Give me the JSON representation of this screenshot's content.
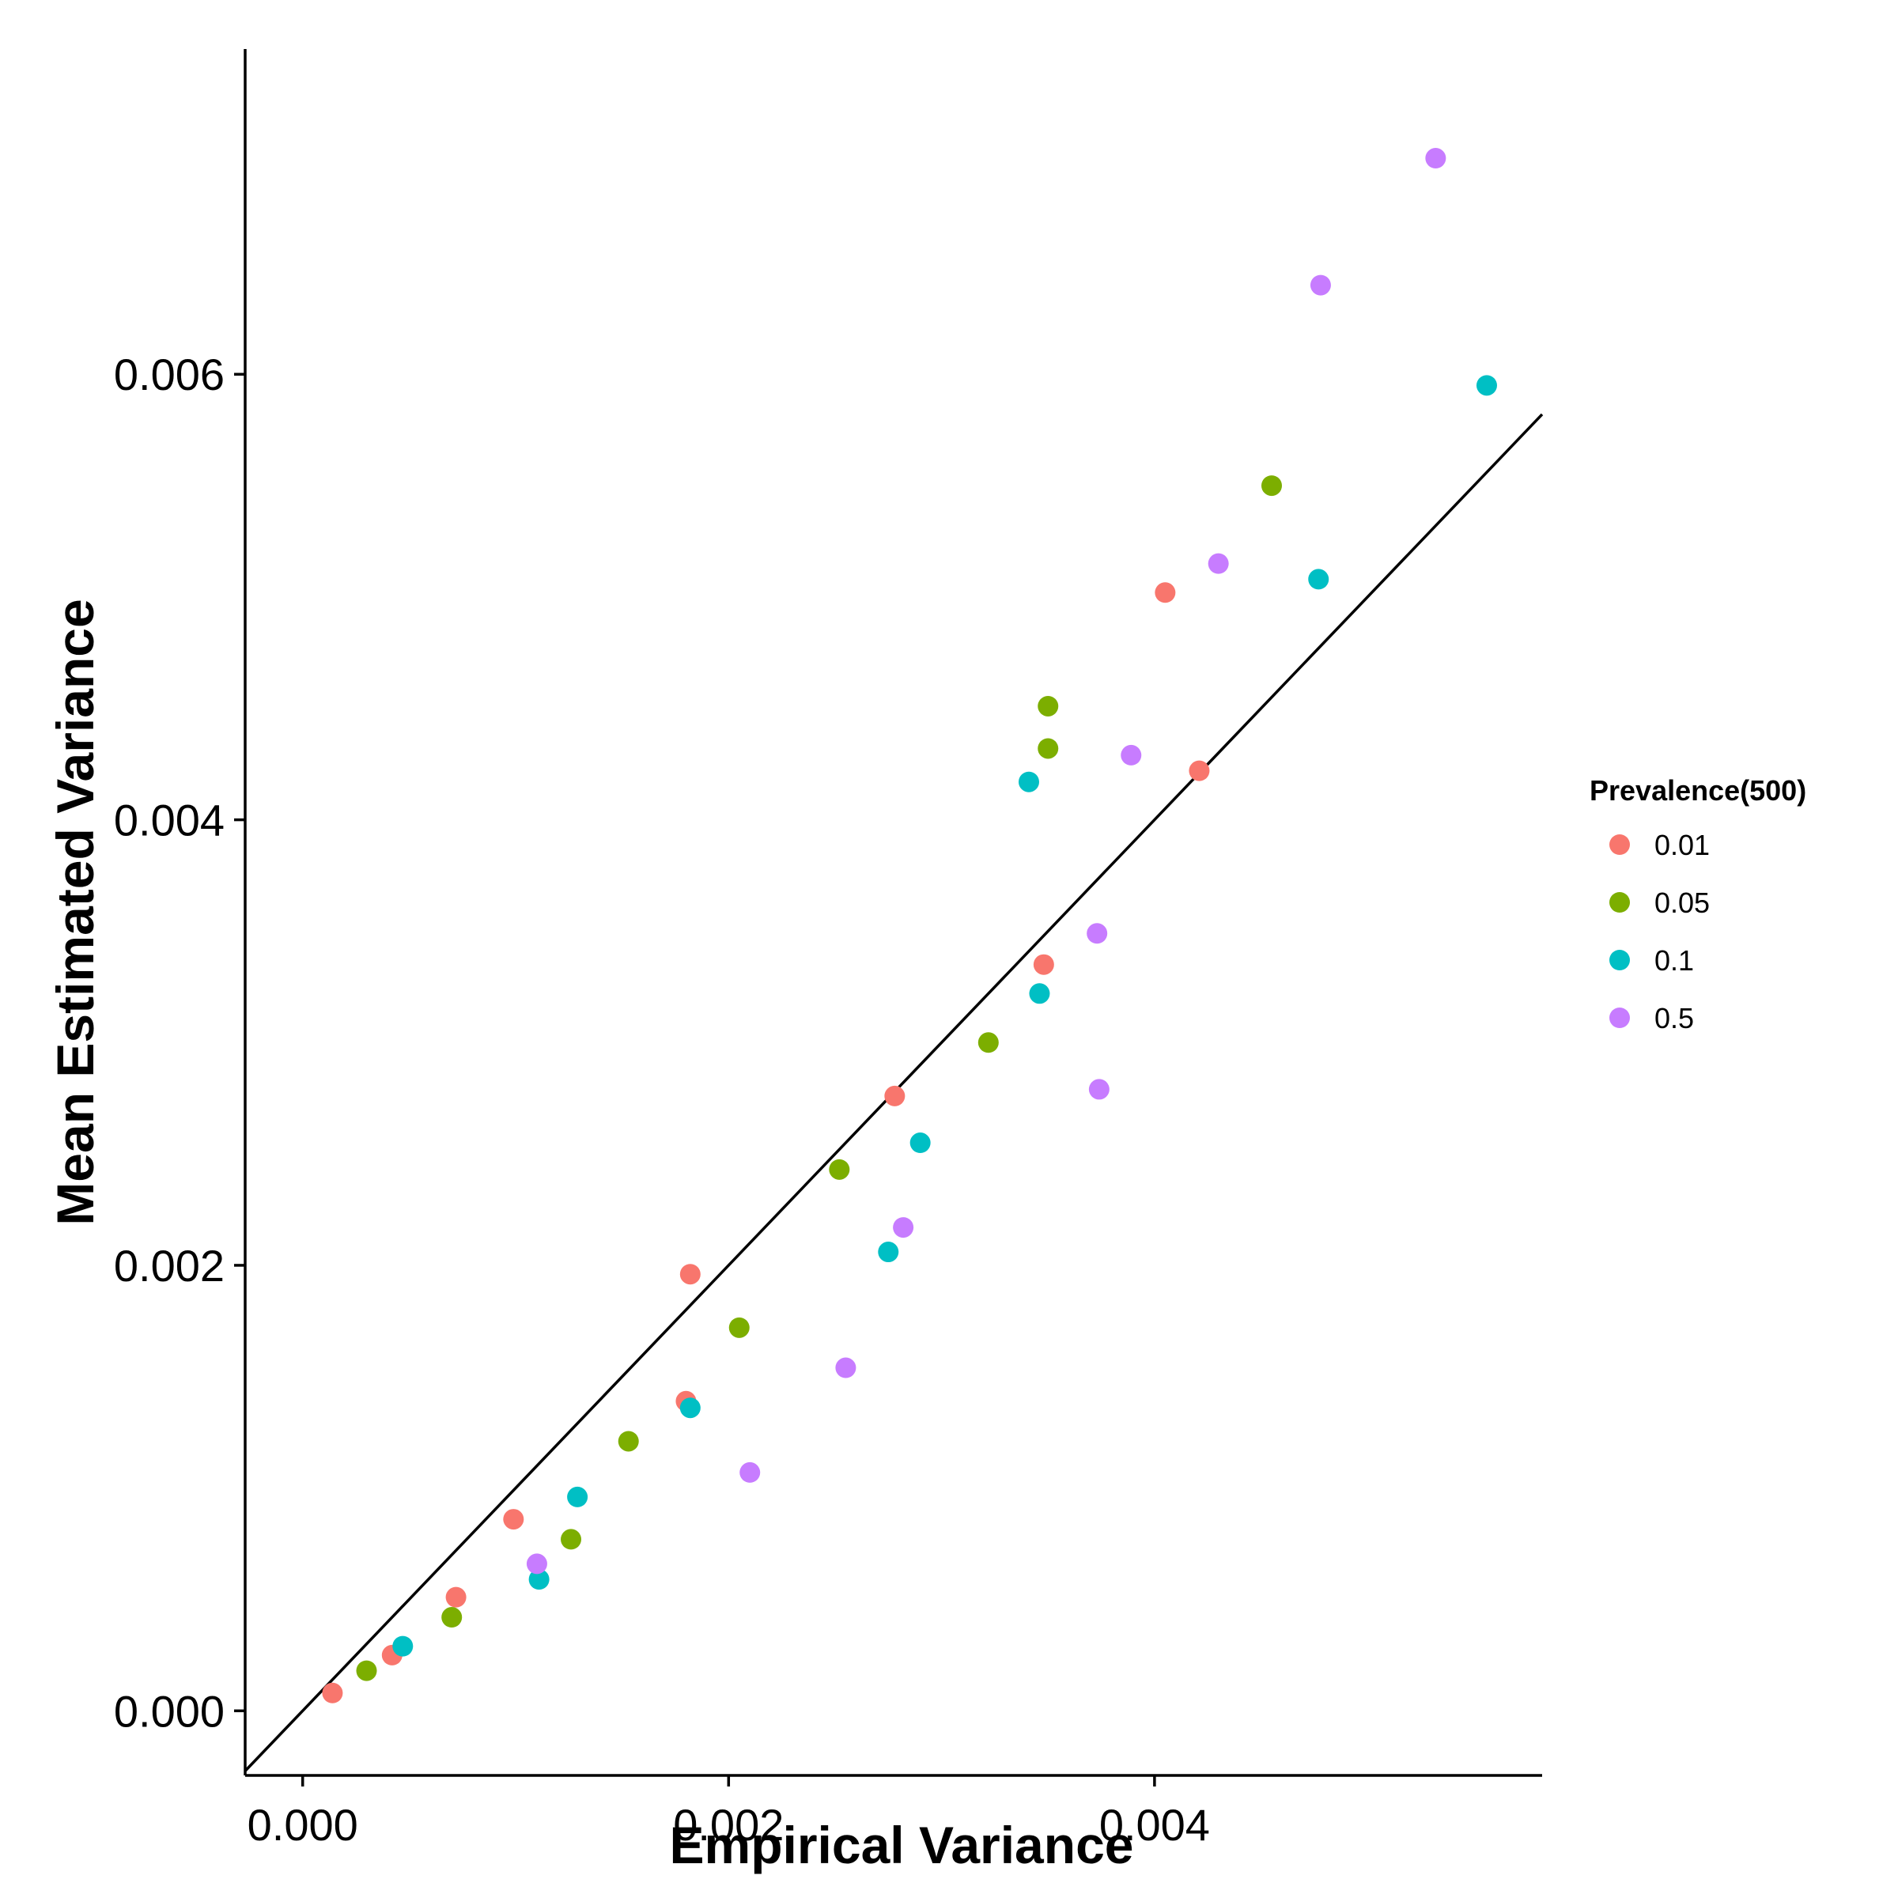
{
  "chart_data": {
    "type": "scatter",
    "title": "",
    "xlabel": "Empirical Variance",
    "ylabel": "Mean Estimated Variance",
    "xlim": [
      -0.00027,
      0.00582
    ],
    "ylim": [
      -0.00029,
      0.00746
    ],
    "x_ticks": [
      0.0,
      0.002,
      0.004
    ],
    "x_tick_labels": [
      "0.000",
      "0.002",
      "0.004"
    ],
    "y_ticks": [
      0.0,
      0.002,
      0.004,
      0.006
    ],
    "y_tick_labels": [
      "0.000",
      "0.002",
      "0.004",
      "0.006"
    ],
    "grid": false,
    "reference_line": {
      "type": "identity",
      "slope": 1,
      "intercept": 0
    },
    "legend": {
      "title": "Prevalence(500)",
      "placement": "right"
    },
    "series": [
      {
        "name": "0.01",
        "color": "#F8766D",
        "points": [
          {
            "x": 0.00014,
            "y": 8e-05
          },
          {
            "x": 0.00042,
            "y": 0.00025
          },
          {
            "x": 0.00072,
            "y": 0.00051
          },
          {
            "x": 0.00099,
            "y": 0.00086
          },
          {
            "x": 0.0018,
            "y": 0.00139
          },
          {
            "x": 0.00182,
            "y": 0.00196
          },
          {
            "x": 0.00278,
            "y": 0.00276
          },
          {
            "x": 0.00348,
            "y": 0.00335
          },
          {
            "x": 0.00405,
            "y": 0.00502
          },
          {
            "x": 0.00421,
            "y": 0.00422
          }
        ]
      },
      {
        "name": "0.05",
        "color": "#7CAE00",
        "points": [
          {
            "x": 0.0003,
            "y": 0.00018
          },
          {
            "x": 0.0007,
            "y": 0.00042
          },
          {
            "x": 0.00126,
            "y": 0.00077
          },
          {
            "x": 0.00153,
            "y": 0.00121
          },
          {
            "x": 0.00205,
            "y": 0.00172
          },
          {
            "x": 0.00252,
            "y": 0.00243
          },
          {
            "x": 0.00322,
            "y": 0.003
          },
          {
            "x": 0.0035,
            "y": 0.00432
          },
          {
            "x": 0.0035,
            "y": 0.00451
          },
          {
            "x": 0.00455,
            "y": 0.0055
          }
        ]
      },
      {
        "name": "0.1",
        "color": "#00BFC4",
        "points": [
          {
            "x": 0.00047,
            "y": 0.00029
          },
          {
            "x": 0.00111,
            "y": 0.00059
          },
          {
            "x": 0.00129,
            "y": 0.00096
          },
          {
            "x": 0.00182,
            "y": 0.00136
          },
          {
            "x": 0.00275,
            "y": 0.00206
          },
          {
            "x": 0.0029,
            "y": 0.00255
          },
          {
            "x": 0.00346,
            "y": 0.00322
          },
          {
            "x": 0.00341,
            "y": 0.00417
          },
          {
            "x": 0.00477,
            "y": 0.00508
          },
          {
            "x": 0.00556,
            "y": 0.00595
          }
        ]
      },
      {
        "name": "0.5",
        "color": "#C77CFF",
        "points": [
          {
            "x": 0.0011,
            "y": 0.00066
          },
          {
            "x": 0.0021,
            "y": 0.00107
          },
          {
            "x": 0.00255,
            "y": 0.00154
          },
          {
            "x": 0.00282,
            "y": 0.00217
          },
          {
            "x": 0.00374,
            "y": 0.00279
          },
          {
            "x": 0.00373,
            "y": 0.00349
          },
          {
            "x": 0.00389,
            "y": 0.00429
          },
          {
            "x": 0.0043,
            "y": 0.00515
          },
          {
            "x": 0.00478,
            "y": 0.0064
          },
          {
            "x": 0.00532,
            "y": 0.00697
          }
        ]
      }
    ]
  }
}
